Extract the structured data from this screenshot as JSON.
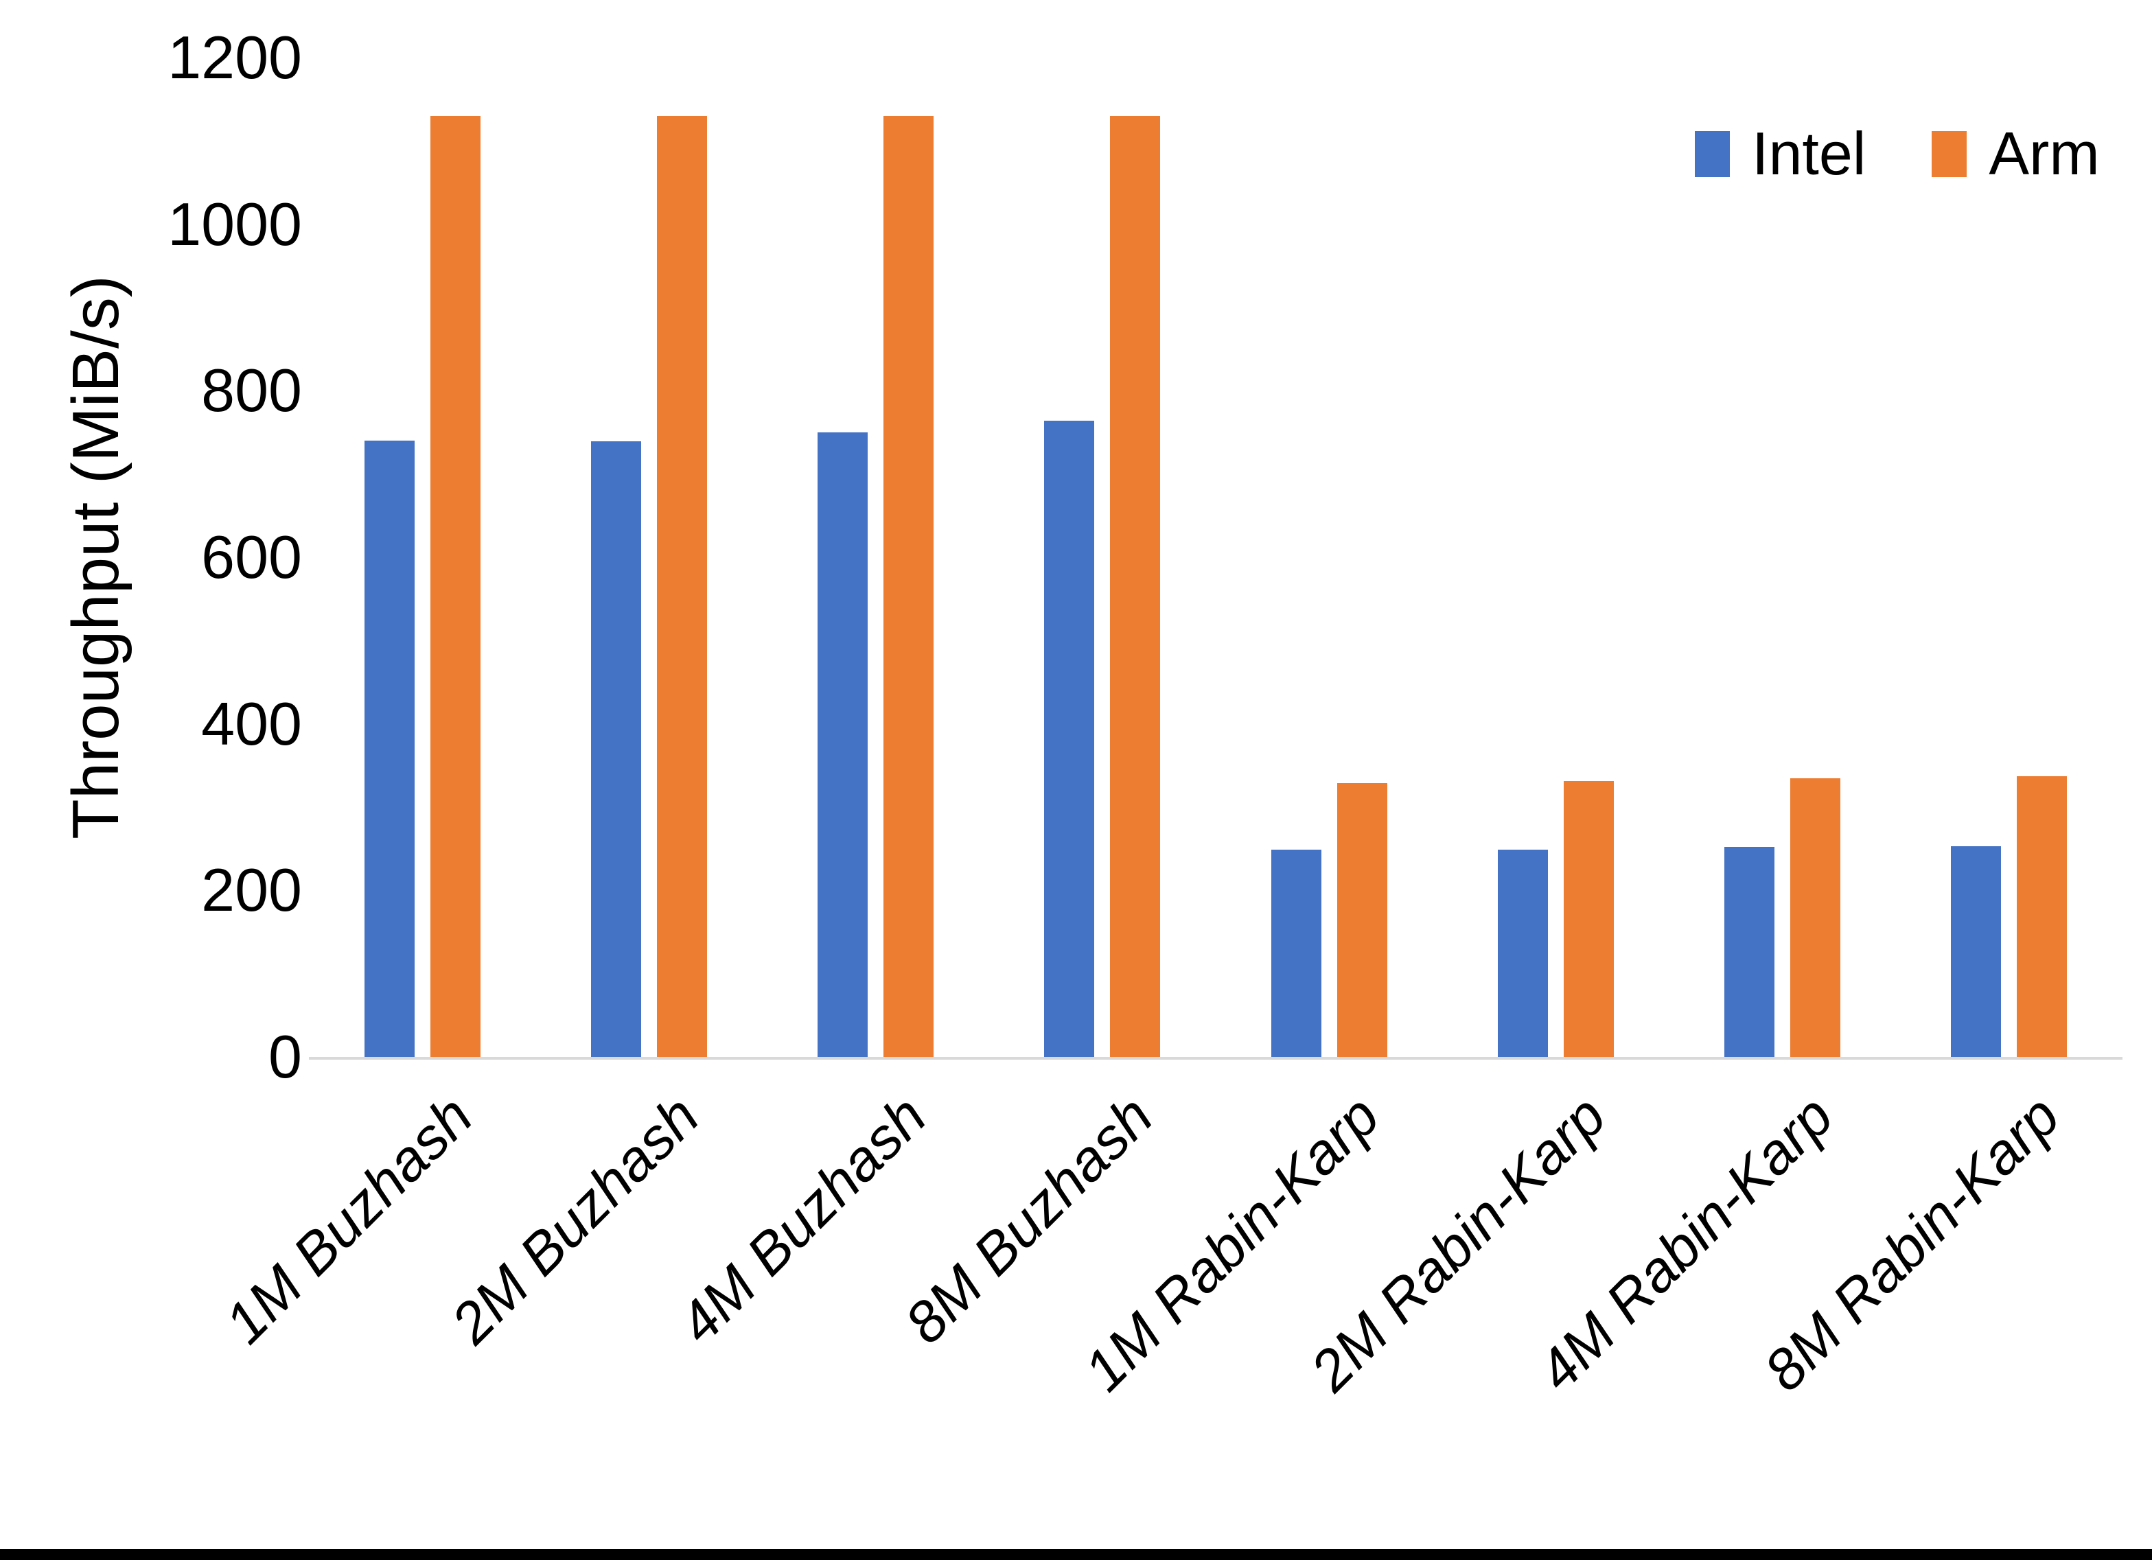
{
  "chart_data": {
    "type": "bar",
    "title": "",
    "xlabel": "",
    "ylabel": "Throughput (MiB/s)",
    "categories": [
      "1M Buzhash",
      "2M Buzhash",
      "4M Buzhash",
      "8M Buzhash",
      "1M Rabin-Karp",
      "2M Rabin-Karp",
      "4M Rabin-Karp",
      "8M Rabin-Karp"
    ],
    "series": [
      {
        "name": "Intel",
        "color": "#4472C4",
        "values": [
          740,
          739,
          750,
          764,
          249,
          249,
          252,
          253
        ]
      },
      {
        "name": "Arm",
        "color": "#ED7D31",
        "values": [
          1130,
          1130,
          1130,
          1130,
          329,
          331,
          335,
          337
        ]
      }
    ],
    "ylim": [
      0,
      1200
    ],
    "ytick_step": 200,
    "ytick_labels": [
      "0",
      "200",
      "400",
      "600",
      "800",
      "1000",
      "1200"
    ],
    "grid": false,
    "legend_position": "top-right",
    "axis_line_color": "#D9D9D9",
    "text_color": "#000000",
    "background_color": "#FFFFFF",
    "bottom_border_color": "#000000"
  },
  "legend": {
    "items": [
      {
        "label": "Intel"
      },
      {
        "label": "Arm"
      }
    ]
  }
}
